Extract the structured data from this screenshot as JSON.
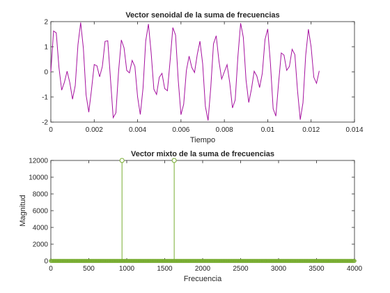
{
  "chart_data": [
    {
      "type": "line",
      "title": "Vector senoidal de la suma de frecuencias",
      "xlabel": "Tiempo",
      "ylabel": "",
      "xlim": [
        0,
        0.014
      ],
      "ylim": [
        -2,
        2
      ],
      "xticks": [
        "0",
        "0.002",
        "0.004",
        "0.006",
        "0.008",
        "0.01",
        "0.012",
        "0.014"
      ],
      "yticks": [
        "-2",
        "-1",
        "0",
        "1",
        "2"
      ],
      "series_color": "#a5119f",
      "components_hz": [
        937.5,
        1625
      ],
      "sample_interval": 0.000125,
      "sample_count": 100,
      "grid": false
    },
    {
      "type": "stem",
      "title": "Vector mixto de la suma de frecuencias",
      "xlabel": "Frecuencia",
      "ylabel": "Magnitud",
      "xlim": [
        0,
        4000
      ],
      "ylim": [
        0,
        12000
      ],
      "xticks": [
        "0",
        "500",
        "1000",
        "1500",
        "2000",
        "2500",
        "3000",
        "3500",
        "4000"
      ],
      "yticks": [
        "0",
        "2000",
        "4000",
        "6000",
        "8000",
        "10000",
        "12000"
      ],
      "series_color": "#77ac30",
      "peaks": [
        {
          "x": 937.5,
          "y": 12000
        },
        {
          "x": 1625,
          "y": 12000
        }
      ],
      "baseline_step": 8,
      "grid": false
    }
  ]
}
